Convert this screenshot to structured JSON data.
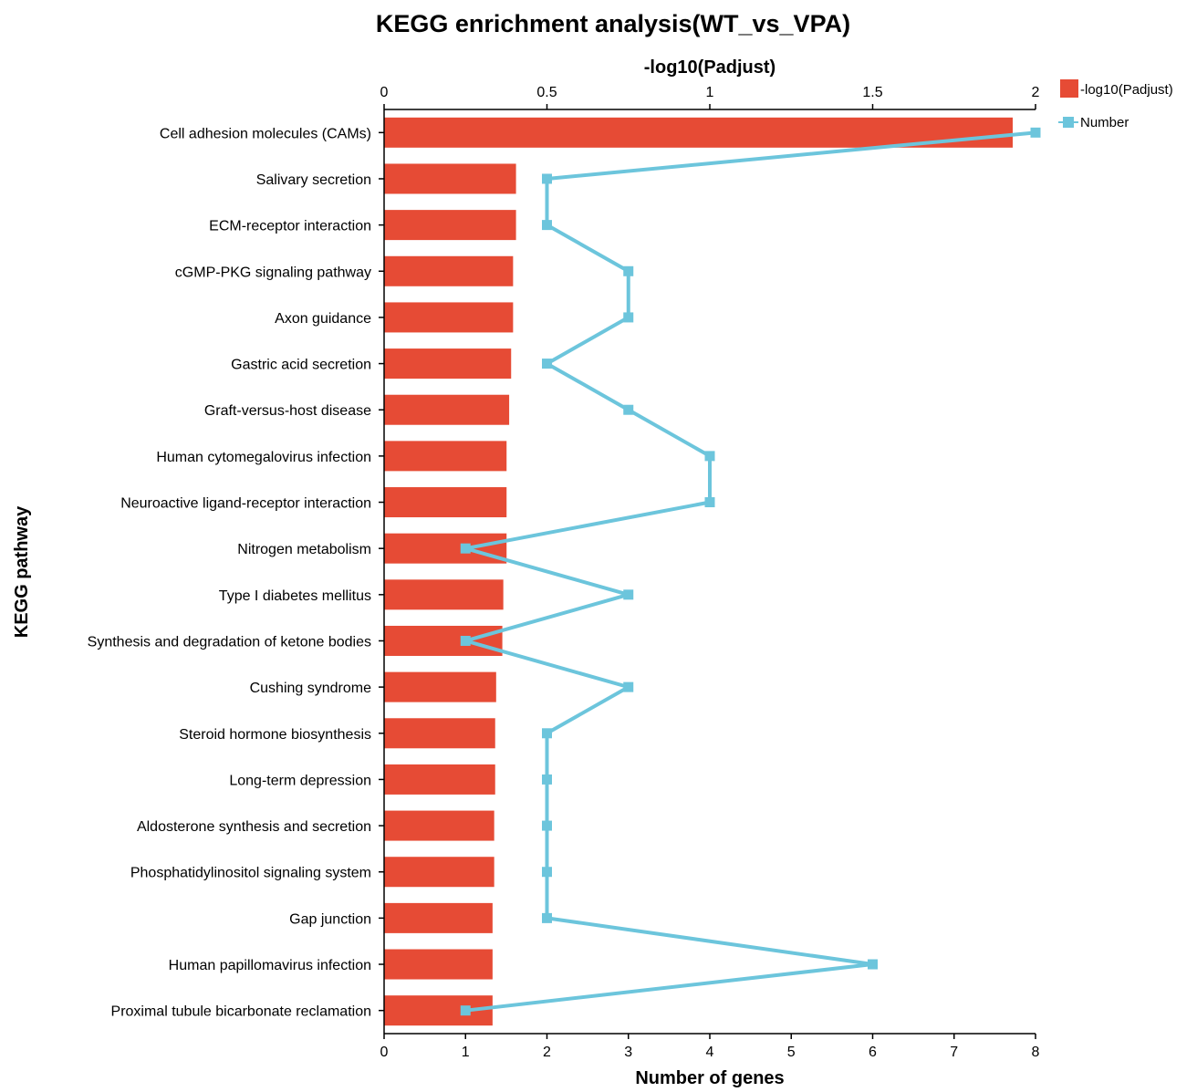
{
  "chart_data": {
    "type": "bar",
    "title": "KEGG enrichment analysis(WT_vs_VPA)",
    "ylabel": "KEGG pathway",
    "categories": [
      "Cell adhesion molecules (CAMs)",
      "Salivary secretion",
      "ECM-receptor interaction",
      "cGMP-PKG signaling pathway",
      "Axon guidance",
      "Gastric acid secretion",
      "Graft-versus-host disease",
      "Human cytomegalovirus infection",
      "Neuroactive ligand-receptor interaction",
      "Nitrogen metabolism",
      "Type I diabetes mellitus",
      "Synthesis and degradation of ketone bodies",
      "Cushing syndrome",
      "Steroid hormone biosynthesis",
      "Long-term depression",
      "Aldosterone synthesis and secretion",
      "Phosphatidylinositol signaling system",
      "Gap junction",
      "Human papillomavirus infection",
      "Proximal tubule bicarbonate reclamation"
    ],
    "top_axis": {
      "label": "-log10(Padjust)",
      "range": [
        0,
        2
      ],
      "ticks": [
        "0",
        "0.5",
        "1",
        "1.5",
        "2"
      ]
    },
    "bottom_axis": {
      "label": "Number of genes",
      "range": [
        0,
        8
      ],
      "ticks": [
        "0",
        "1",
        "2",
        "3",
        "4",
        "5",
        "6",
        "7",
        "8"
      ]
    },
    "series": [
      {
        "name": "-log10(Padjust)",
        "type": "bar",
        "axis": "top",
        "color": "#e64b35",
        "values": [
          1.93,
          0.405,
          0.405,
          0.396,
          0.396,
          0.39,
          0.384,
          0.376,
          0.376,
          0.376,
          0.366,
          0.363,
          0.344,
          0.341,
          0.341,
          0.338,
          0.338,
          0.333,
          0.333,
          0.333
        ]
      },
      {
        "name": "Number",
        "type": "line",
        "axis": "bottom",
        "color": "#6cc5dc",
        "values": [
          8,
          2,
          2,
          3,
          3,
          2,
          3,
          4,
          4,
          1,
          3,
          1,
          3,
          2,
          2,
          2,
          2,
          2,
          6,
          1
        ]
      }
    ],
    "legend": {
      "position": "top-right"
    },
    "grid": false
  }
}
